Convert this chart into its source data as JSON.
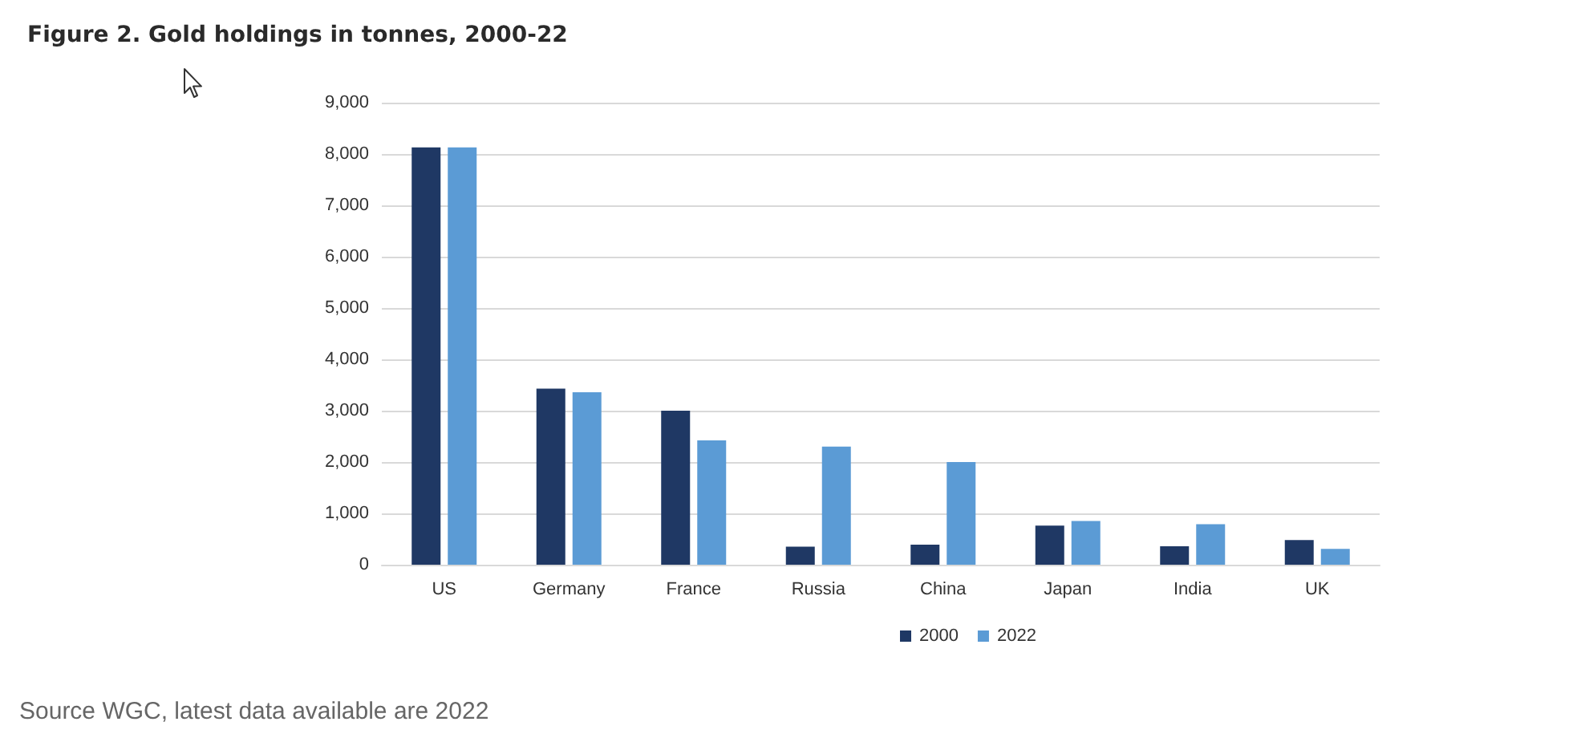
{
  "chart_data": {
    "type": "bar",
    "title": "Figure 2. Gold holdings in tonnes, 2000-22",
    "categories": [
      "US",
      "Germany",
      "France",
      "Russia",
      "China",
      "Japan",
      "India",
      "UK"
    ],
    "series": [
      {
        "name": "2000",
        "color": "#1f3864",
        "values": [
          8130,
          3430,
          3000,
          350,
          390,
          760,
          360,
          480
        ]
      },
      {
        "name": "2022",
        "color": "#5b9bd5",
        "values": [
          8130,
          3360,
          2420,
          2300,
          2000,
          850,
          790,
          310
        ]
      }
    ],
    "ylim": [
      0,
      9000
    ],
    "yticks": [
      {
        "value": 0,
        "label": "0"
      },
      {
        "value": 1000,
        "label": "1,000"
      },
      {
        "value": 2000,
        "label": "2,000"
      },
      {
        "value": 3000,
        "label": "3,000"
      },
      {
        "value": 4000,
        "label": "4,000"
      },
      {
        "value": 5000,
        "label": "5,000"
      },
      {
        "value": 6000,
        "label": "6,000"
      },
      {
        "value": 7000,
        "label": "7,000"
      },
      {
        "value": 8000,
        "label": "8,000"
      },
      {
        "value": 9000,
        "label": "9,000"
      }
    ],
    "grid": "y",
    "legend": "bottom",
    "annotations": [
      "Source WGC, latest data available are 2022"
    ]
  }
}
